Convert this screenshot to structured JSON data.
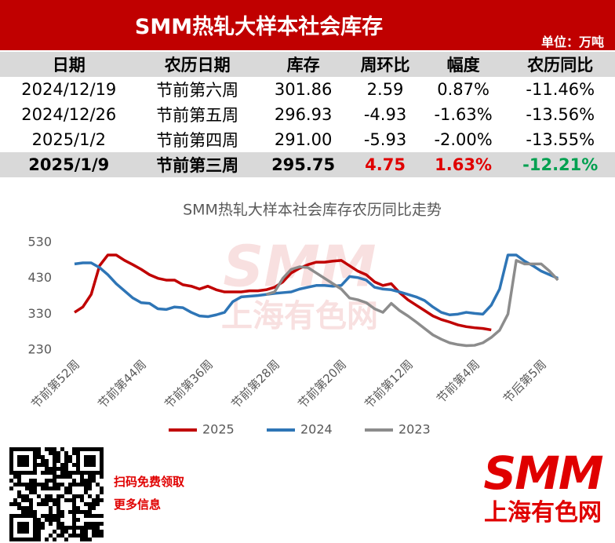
{
  "header": {
    "title": "SMM热轧大样本社会库存",
    "unit": "单位：万吨"
  },
  "table": {
    "columns": [
      "日期",
      "农历日期",
      "库存",
      "周环比",
      "幅度",
      "农历同比"
    ],
    "rows": [
      [
        "2024/12/19",
        "节前第六周",
        "301.86",
        "2.59",
        "0.87%",
        "-11.46%"
      ],
      [
        "2024/12/26",
        "节前第五周",
        "296.93",
        "-4.93",
        "-1.63%",
        "-13.56%"
      ],
      [
        "2025/1/2",
        "节前第四周",
        "291.00",
        "-5.93",
        "-2.00%",
        "-13.55%"
      ],
      [
        "2025/1/9",
        "节前第三周",
        "295.75",
        "4.75",
        "1.63%",
        "-12.21%"
      ]
    ]
  },
  "chart_data": {
    "type": "line",
    "title": "SMM热轧大样本社会库存农历同比走势",
    "watermark": [
      "SMM",
      "上海有色网"
    ],
    "categories": [
      "节前第52周",
      null,
      null,
      null,
      null,
      null,
      null,
      null,
      "节前第44周",
      null,
      null,
      null,
      null,
      null,
      null,
      null,
      "节前第36周",
      null,
      null,
      null,
      null,
      null,
      null,
      null,
      "节前第28周",
      null,
      null,
      null,
      null,
      null,
      null,
      null,
      "节前第20周",
      null,
      null,
      null,
      null,
      null,
      null,
      null,
      "节前第12周",
      null,
      null,
      null,
      null,
      null,
      null,
      null,
      "节前第4周",
      null,
      null,
      null,
      null,
      null,
      null,
      null,
      "节后第5周",
      null,
      null
    ],
    "series": [
      {
        "name": "2025",
        "color": "#c00000",
        "values": [
          335,
          350,
          385,
          465,
          495,
          495,
          480,
          468,
          455,
          440,
          430,
          425,
          425,
          412,
          408,
          400,
          408,
          398,
          392,
          392,
          392,
          395,
          395,
          398,
          405,
          420,
          445,
          458,
          468,
          475,
          475,
          478,
          480,
          465,
          450,
          440,
          420,
          410,
          415,
          390,
          370,
          355,
          340,
          325,
          315,
          308,
          300,
          295,
          292,
          290,
          286,
          null,
          null,
          null,
          null,
          null,
          null,
          null,
          null
        ]
      },
      {
        "name": "2024",
        "color": "#2e75b6",
        "values": [
          470,
          473,
          473,
          460,
          440,
          415,
          395,
          375,
          362,
          360,
          345,
          343,
          350,
          348,
          335,
          325,
          323,
          328,
          335,
          365,
          378,
          380,
          382,
          385,
          388,
          390,
          392,
          400,
          405,
          410,
          410,
          408,
          410,
          435,
          432,
          425,
          405,
          400,
          398,
          392,
          385,
          378,
          368,
          350,
          335,
          328,
          330,
          335,
          332,
          330,
          355,
          400,
          495,
          495,
          478,
          465,
          450,
          440,
          430
        ]
      },
      {
        "name": "2023",
        "color": "#8c8c8c",
        "values": [
          null,
          null,
          null,
          null,
          null,
          null,
          null,
          null,
          null,
          null,
          null,
          null,
          null,
          null,
          null,
          null,
          null,
          null,
          null,
          null,
          null,
          null,
          null,
          385,
          392,
          430,
          455,
          462,
          460,
          445,
          430,
          415,
          400,
          375,
          370,
          362,
          345,
          335,
          360,
          340,
          325,
          308,
          290,
          272,
          260,
          250,
          245,
          242,
          243,
          250,
          265,
          285,
          330,
          480,
          470,
          470,
          470,
          450,
          425
        ]
      }
    ],
    "ylim": [
      230,
      530
    ],
    "yticks": [
      230,
      330,
      430,
      530
    ],
    "grid": false,
    "legend": "bottom"
  },
  "footer": {
    "qr_text": [
      "扫码免费领取",
      "更多信息"
    ],
    "logo": "SMM",
    "logo_sub": "上海有色网"
  }
}
